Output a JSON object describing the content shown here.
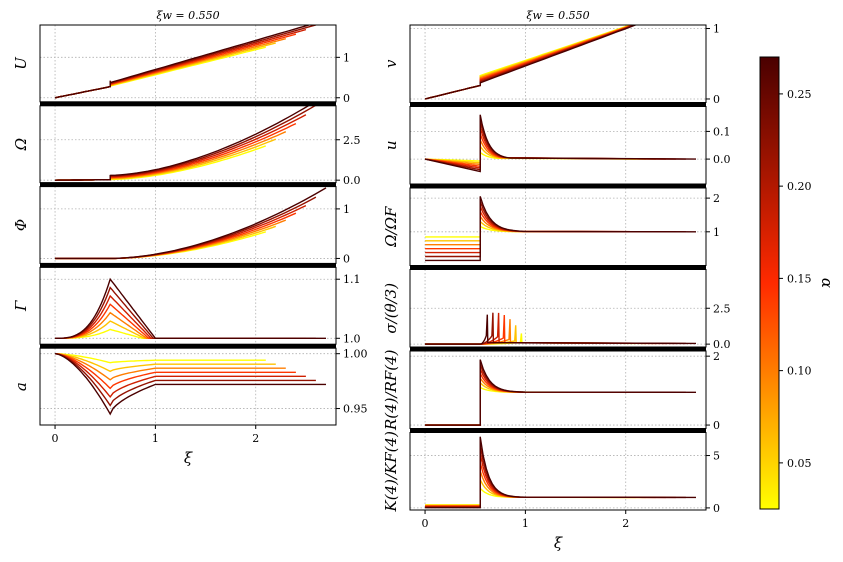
{
  "chart_data": {
    "type": "line",
    "colormap": {
      "name": "hot_r",
      "low": "#ffff00",
      "mid": "#ff2a00",
      "high": "#4a0000"
    },
    "alpha_values": [
      0.025,
      0.06,
      0.1,
      0.14,
      0.18,
      0.22,
      0.27
    ],
    "colorbar": {
      "label": "α",
      "ticks": [
        "0.05",
        "0.10",
        "0.15",
        "0.20",
        "0.25"
      ],
      "tick_values": [
        0.05,
        0.1,
        0.15,
        0.2,
        0.25
      ],
      "range": [
        0.025,
        0.27
      ]
    },
    "columns": [
      {
        "title": "ξw = 0.550",
        "xlabel": "ξ",
        "xlim": [
          -0.15,
          2.8
        ],
        "xticks": [
          "0",
          "1",
          "2"
        ],
        "xtick_values": [
          0,
          1,
          2
        ],
        "panels": [
          {
            "ylabel": "U",
            "ylim": [
              -0.1,
              1.8
            ],
            "yticks": [
              "0",
              "1"
            ],
            "ytick_values": [
              0,
              1
            ],
            "kind": "U"
          },
          {
            "ylabel": "Ω",
            "ylim": [
              -0.15,
              4.6
            ],
            "yticks": [
              "0.0",
              "2.5"
            ],
            "ytick_values": [
              0,
              2.5
            ],
            "kind": "Omega"
          },
          {
            "ylabel": "Φ",
            "ylim": [
              -0.1,
              1.45
            ],
            "yticks": [
              "0",
              "1"
            ],
            "ytick_values": [
              0,
              1
            ],
            "kind": "Phi"
          },
          {
            "ylabel": "Γ",
            "ylim": [
              0.99,
              1.12
            ],
            "yticks": [
              "1.0",
              "1.1"
            ],
            "ytick_values": [
              1.0,
              1.1
            ],
            "kind": "Gamma"
          },
          {
            "ylabel": "a",
            "ylim": [
              0.935,
              1.005
            ],
            "yticks": [
              "0.95",
              "1.00"
            ],
            "ytick_values": [
              0.95,
              1.0
            ],
            "kind": "a"
          }
        ]
      },
      {
        "title": "ξw = 0.550",
        "xlabel": "ξ",
        "xlim": [
          -0.15,
          2.8
        ],
        "xticks": [
          "0",
          "1",
          "2"
        ],
        "xtick_values": [
          0,
          1,
          2
        ],
        "panels": [
          {
            "ylabel": "v",
            "ylim": [
              -0.05,
              1.05
            ],
            "yticks": [
              "0",
              "1"
            ],
            "ytick_values": [
              0,
              1
            ],
            "kind": "v"
          },
          {
            "ylabel": "u",
            "ylim": [
              -0.09,
              0.19
            ],
            "yticks": [
              "0.0",
              "0.1"
            ],
            "ytick_values": [
              0,
              0.1
            ],
            "kind": "u"
          },
          {
            "ylabel": "Ω/ΩF",
            "ylim": [
              0,
              2.3
            ],
            "yticks": [
              "1",
              "2"
            ],
            "ytick_values": [
              1,
              2
            ],
            "kind": "OmegaRatio"
          },
          {
            "ylabel": "σ/(θ/3)",
            "ylim": [
              -0.2,
              5.2
            ],
            "yticks": [
              "0.0",
              "2.5"
            ],
            "ytick_values": [
              0,
              2.5
            ],
            "kind": "sigma"
          },
          {
            "ylabel": "R(4)/RF(4)",
            "ylim": [
              -0.1,
              2.15
            ],
            "yticks": [
              "0",
              "2"
            ],
            "ytick_values": [
              0,
              2
            ],
            "kind": "R4"
          },
          {
            "ylabel": "K(4)/KF(4)",
            "ylim": [
              -0.2,
              7.2
            ],
            "yticks": [
              "0",
              "5"
            ],
            "ytick_values": [
              0,
              5
            ],
            "kind": "K4"
          }
        ]
      }
    ]
  }
}
